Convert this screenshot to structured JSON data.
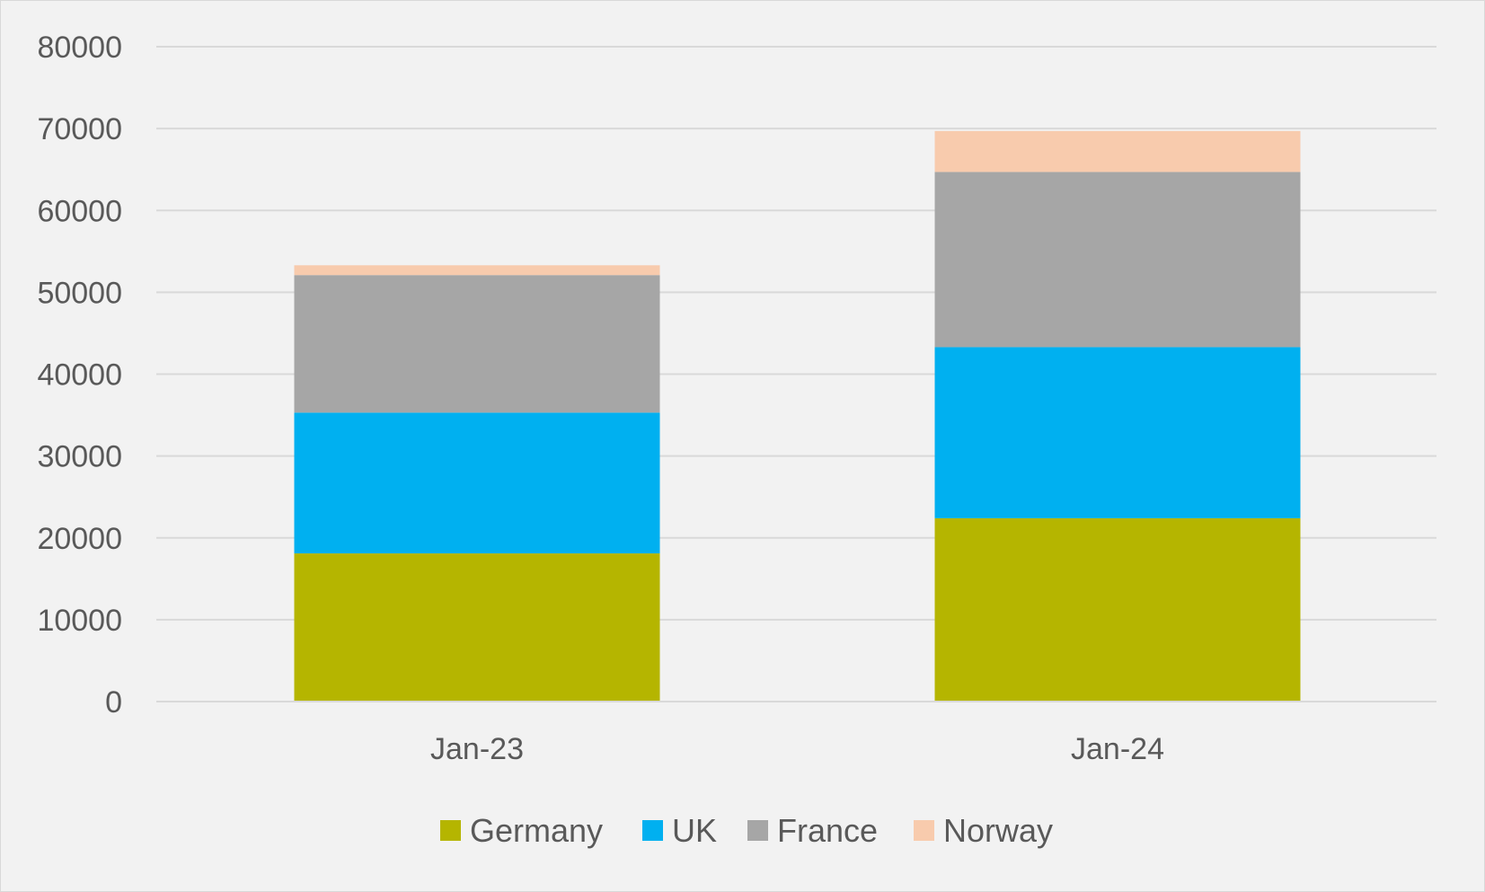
{
  "chart_data": {
    "type": "bar",
    "stacked": true,
    "title": "",
    "xlabel": "",
    "ylabel": "",
    "categories": [
      "Jan-23",
      "Jan-24"
    ],
    "series": [
      {
        "name": "Germany",
        "color": "#b5b500",
        "values": [
          18100,
          22400
        ]
      },
      {
        "name": "UK",
        "color": "#00b0f0",
        "values": [
          17200,
          20900
        ]
      },
      {
        "name": "France",
        "color": "#a6a6a6",
        "values": [
          16800,
          21400
        ]
      },
      {
        "name": "Norway",
        "color": "#f8cbad",
        "values": [
          1200,
          5000
        ]
      }
    ],
    "ylim": [
      0,
      80000
    ],
    "yticks": [
      "0",
      "10000",
      "20000",
      "30000",
      "40000",
      "50000",
      "60000",
      "70000",
      "80000"
    ],
    "grid": true,
    "legend_position": "bottom",
    "background_color": "#f2f2f2",
    "gridline_color": "#d9d9d9",
    "text_color": "#595959"
  }
}
